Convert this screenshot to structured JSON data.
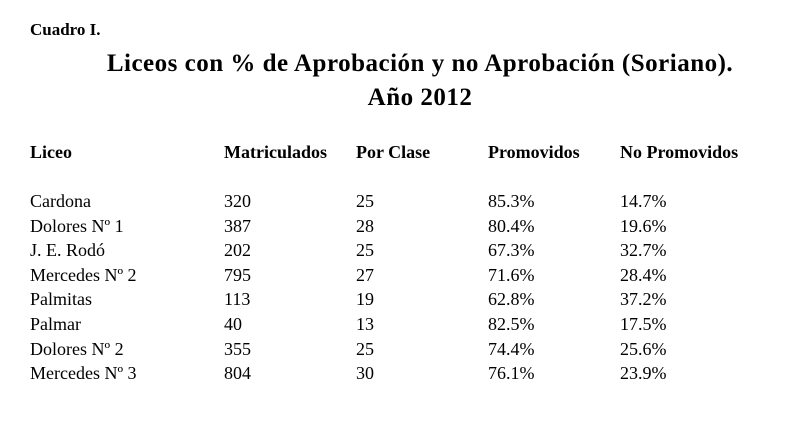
{
  "header": {
    "label": "Cuadro I.",
    "title": "Liceos con % de Aprobación y no Aprobación (Soriano).",
    "subtitle": "Año 2012"
  },
  "table": {
    "columns": [
      "Liceo",
      "Matriculados",
      "Por Clase",
      "Promovidos",
      "No Promovidos"
    ],
    "rows": [
      [
        "Cardona",
        "320",
        "25",
        "85.3%",
        "14.7%"
      ],
      [
        "Dolores Nº 1",
        "387",
        "28",
        "80.4%",
        "19.6%"
      ],
      [
        "J. E. Rodó",
        "202",
        "25",
        "67.3%",
        "32.7%"
      ],
      [
        "Mercedes Nº 2",
        "795",
        "27",
        "71.6%",
        "28.4%"
      ],
      [
        "Palmitas",
        "113",
        "19",
        "62.8%",
        "37.2%"
      ],
      [
        "Palmar",
        "40",
        "13",
        "82.5%",
        "17.5%"
      ],
      [
        "Dolores Nº 2",
        "355",
        "25",
        "74.4%",
        "25.6%"
      ],
      [
        "Mercedes Nº 3",
        "804",
        "30",
        "76.1%",
        "23.9%"
      ]
    ]
  }
}
